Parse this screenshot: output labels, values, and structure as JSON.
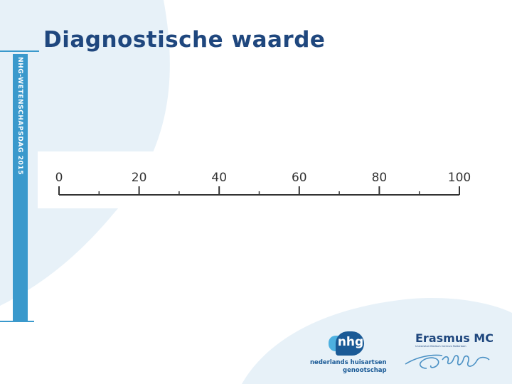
{
  "slide": {
    "title": "Diagnostische waarde",
    "sidebar_text": "NHG-WETENSCHAPSDAG 2015"
  },
  "scale": {
    "min": 0,
    "max": 100,
    "major_ticks": [
      0,
      20,
      40,
      60,
      80,
      100
    ],
    "major_labels": [
      "0",
      "20",
      "40",
      "60",
      "80",
      "100"
    ],
    "minor_ticks": [
      10,
      30,
      50,
      70,
      90
    ]
  },
  "logos": {
    "nhg": {
      "mark_text": "nhg",
      "line1": "nederlands huisartsen",
      "line2": "genootschap",
      "mark_icon": "nhg-logo-mark"
    },
    "erasmus": {
      "name": "Erasmus MC",
      "tagline": "Universitair Medisch Centrum Rotterdam",
      "signature_icon": "erasmus-signature"
    }
  },
  "colors": {
    "title": "#1f477e",
    "sidebar": "#3a99cc",
    "background_shape": "#e7f1f8",
    "scale": "#333333"
  }
}
